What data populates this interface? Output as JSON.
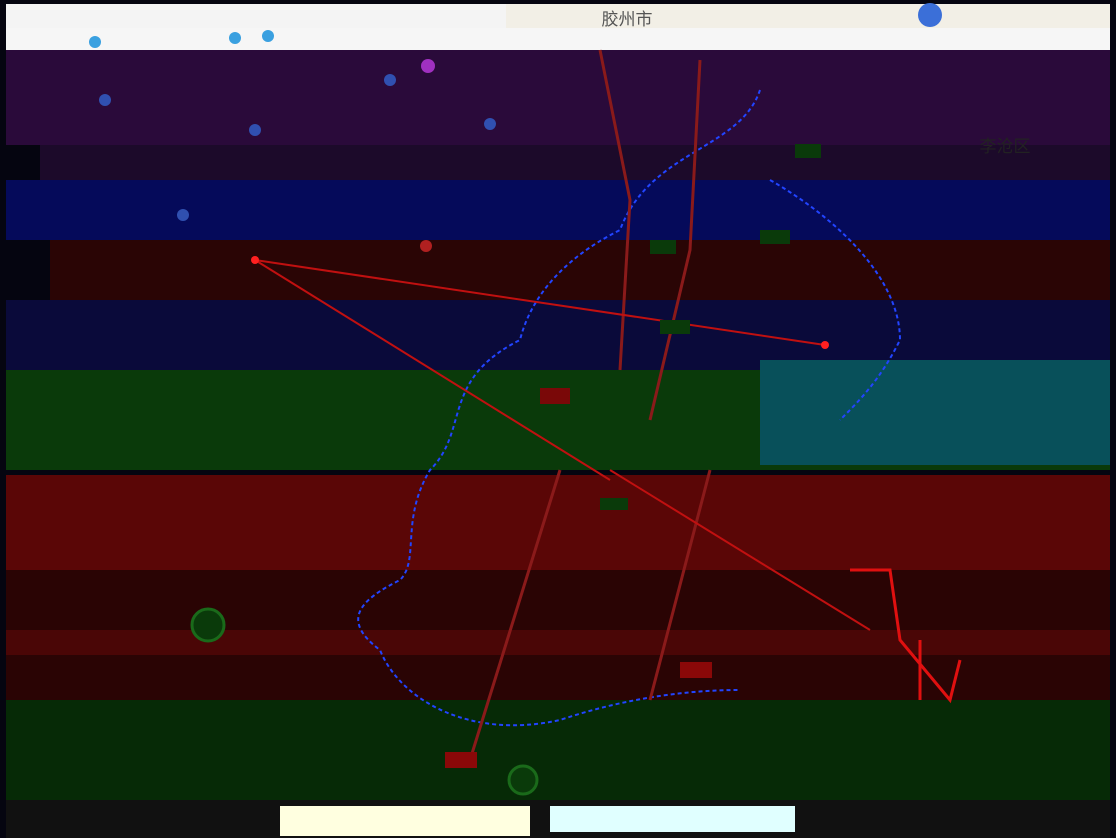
{
  "map": {
    "labels": [
      "胶州市",
      "李沧区"
    ]
  }
}
